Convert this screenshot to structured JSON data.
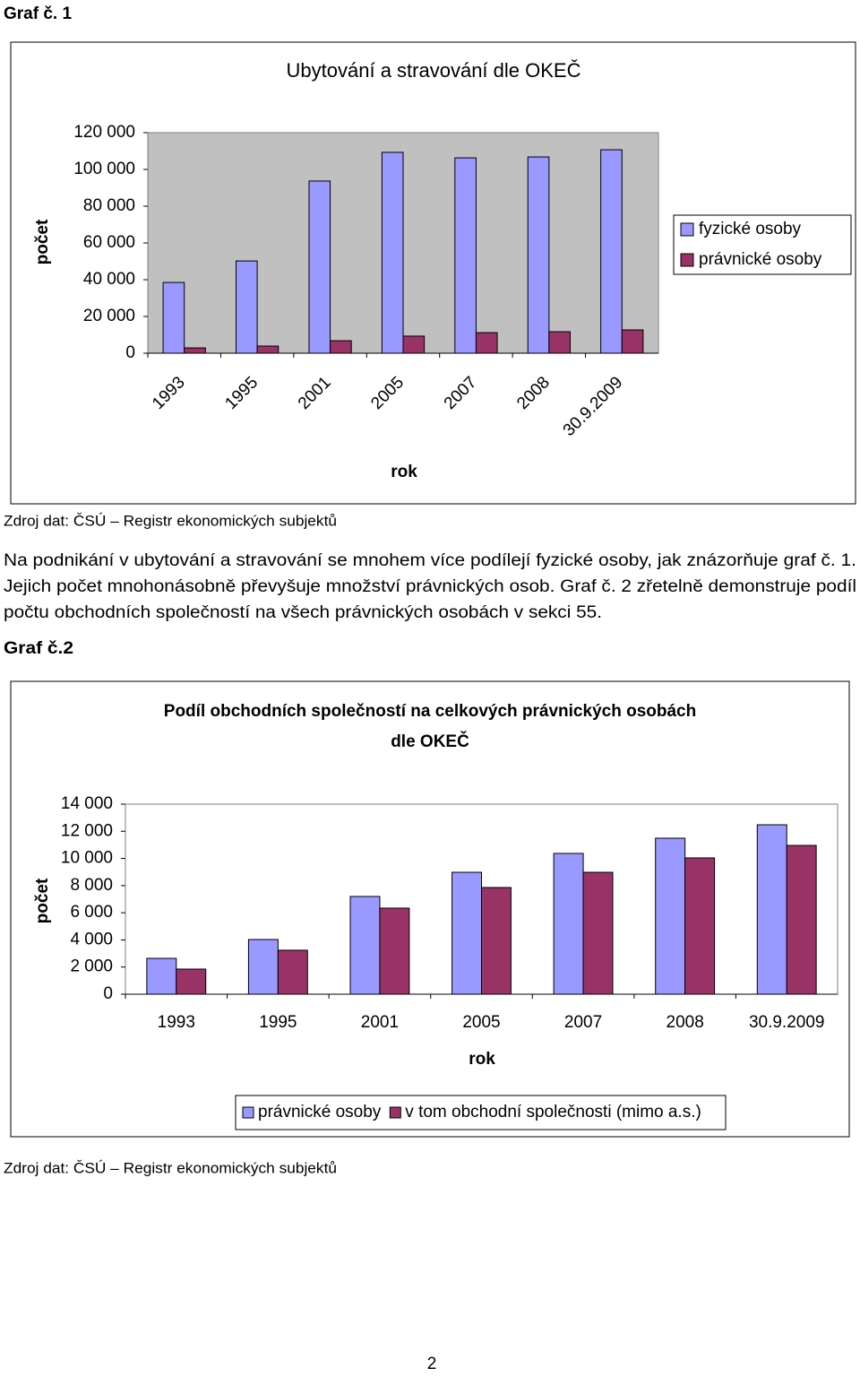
{
  "header": "Graf č. 1",
  "chart_data": [
    {
      "type": "bar",
      "title": "Ubytování a stravování dle OKEČ",
      "y_label": "počet",
      "x_label": "rok",
      "categories": [
        "1993",
        "1995",
        "2001",
        "2005",
        "2007",
        "2008",
        "30.9.2009"
      ],
      "series": [
        {
          "name": "fyzické osoby",
          "color": "#9999ff",
          "values": [
            38500,
            50200,
            93700,
            109300,
            106300,
            106800,
            110700
          ]
        },
        {
          "name": "právnické osoby",
          "color": "#993366",
          "values": [
            2900,
            3900,
            6800,
            9300,
            11200,
            11700,
            12700
          ]
        }
      ],
      "ylim": [
        0,
        120000
      ],
      "yticks": [
        0,
        {
          "value": 20000,
          "label": "20 000"
        },
        {
          "value": 40000,
          "label": "40 000"
        },
        {
          "value": 60000,
          "label": "60 000"
        },
        {
          "value": 80000,
          "label": "80 000"
        },
        {
          "value": 100000,
          "label": "100 000"
        },
        {
          "value": 120000,
          "label": "120 000"
        }
      ],
      "grid": false,
      "legend": "right"
    },
    {
      "type": "bar",
      "title": [
        "Podíl obchodních společností na celkových právnických osobách",
        "dle OKEČ"
      ],
      "y_label": "počet",
      "x_label": "rok",
      "categories": [
        "1993",
        "1995",
        "2001",
        "2005",
        "2007",
        "2008",
        "30.9.2009"
      ],
      "series": [
        {
          "name": "právnické osoby",
          "color": "#9999ff",
          "values": [
            2640,
            4030,
            7200,
            8980,
            10370,
            11490,
            12480
          ]
        },
        {
          "name": "v tom obchodní společnosti (mimo a.s.)",
          "color": "#993366",
          "values": [
            1850,
            3240,
            6340,
            7860,
            8980,
            10040,
            10960
          ]
        }
      ],
      "ylim": [
        0,
        14000
      ],
      "yticks": [
        0,
        {
          "value": 2000,
          "label": "2 000"
        },
        {
          "value": 4000,
          "label": "4 000"
        },
        {
          "value": 6000,
          "label": "6 000"
        },
        {
          "value": 8000,
          "label": "8 000"
        },
        {
          "value": 10000,
          "label": "10 000"
        },
        {
          "value": 12000,
          "label": "12 000"
        },
        {
          "value": 14000,
          "label": "14 000"
        }
      ],
      "grid": false,
      "legend": "bottom"
    }
  ],
  "source_1": "Zdroj dat: ČSÚ – Registr ekonomických subjektů",
  "paragraph": [
    "Na podnikání v ubytování a stravování se mnohem více podílejí fyzické osoby, jak znázorňuje graf č. 1.",
    "Jejich počet mnohonásobně převyšuje množství právnických osob. Graf č. 2 zřetelně demonstruje podíl",
    "počtu obchodních společností na všech právnických osobách v sekci 55."
  ],
  "header_2": "Graf č.2",
  "source_2": "Zdroj dat: ČSÚ – Registr ekonomických subjektů",
  "page_number": "2"
}
